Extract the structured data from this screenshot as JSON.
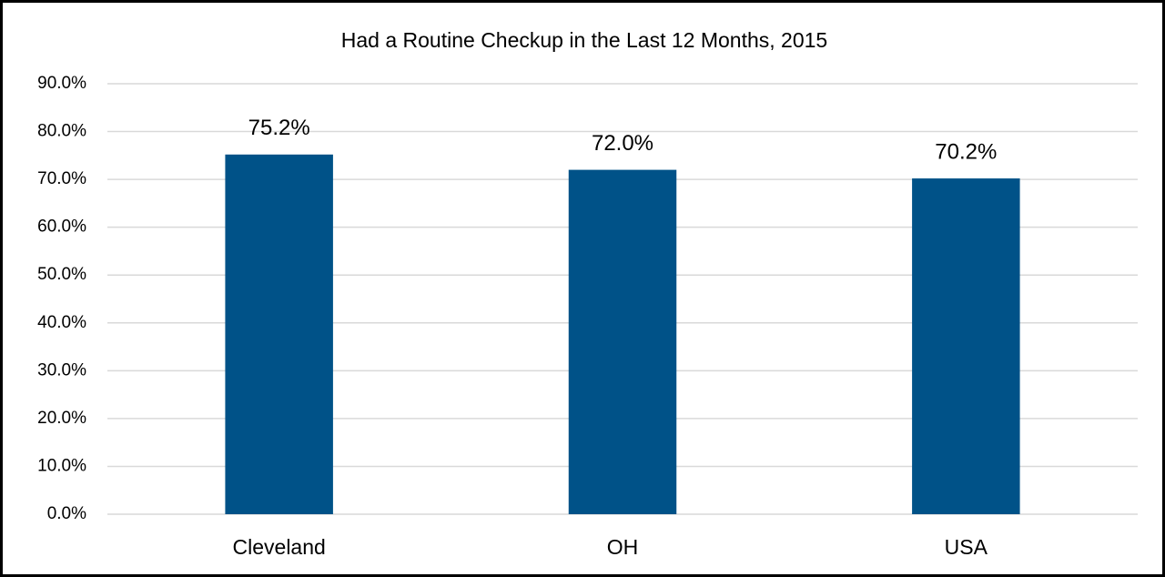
{
  "chart_data": {
    "type": "bar",
    "title": "Had a Routine Checkup in the Last 12 Months, 2015",
    "categories": [
      "Cleveland",
      "OH",
      "USA"
    ],
    "values": [
      75.2,
      72.0,
      70.2
    ],
    "value_labels": [
      "75.2%",
      "72.0%",
      "70.2%"
    ],
    "color": "#005288",
    "ylim": [
      0,
      90
    ],
    "yticks": [
      {
        "value": 0,
        "label": "0.0%"
      },
      {
        "value": 10,
        "label": "10.0%"
      },
      {
        "value": 20,
        "label": "20.0%"
      },
      {
        "value": 30,
        "label": "30.0%"
      },
      {
        "value": 40,
        "label": "40.0%"
      },
      {
        "value": 50,
        "label": "50.0%"
      },
      {
        "value": 60,
        "label": "60.0%"
      },
      {
        "value": 70,
        "label": "70.0%"
      },
      {
        "value": 80,
        "label": "80.0%"
      },
      {
        "value": 90,
        "label": "90.0%"
      }
    ],
    "grid": true
  }
}
